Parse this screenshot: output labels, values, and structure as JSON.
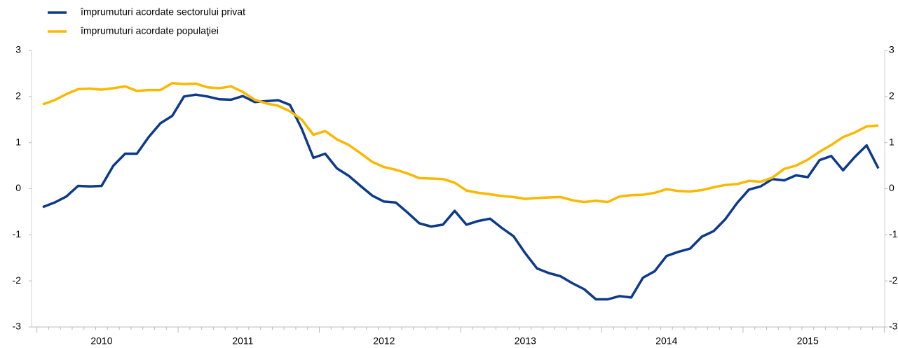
{
  "chart_data": {
    "type": "line",
    "categories": [
      null,
      null,
      null,
      null,
      null,
      "2010",
      null,
      null,
      null,
      null,
      null,
      null,
      null,
      null,
      null,
      null,
      null,
      "2011",
      null,
      null,
      null,
      null,
      null,
      null,
      null,
      null,
      null,
      null,
      null,
      "2012",
      null,
      null,
      null,
      null,
      null,
      null,
      null,
      null,
      null,
      null,
      null,
      "2013",
      null,
      null,
      null,
      null,
      null,
      null,
      null,
      null,
      null,
      null,
      null,
      "2014",
      null,
      null,
      null,
      null,
      null,
      null,
      null,
      null,
      null,
      null,
      null,
      "2015",
      null,
      null,
      null,
      null,
      null,
      null
    ],
    "series": [
      {
        "name": "împrumuturi acordate sectorului privat",
        "color": "#0d3a8c",
        "values": [
          -0.4,
          -0.3,
          -0.17,
          0.06,
          0.05,
          0.06,
          0.5,
          0.76,
          0.76,
          1.12,
          1.42,
          1.58,
          2.0,
          2.04,
          2.0,
          1.94,
          1.93,
          2.01,
          1.88,
          1.9,
          1.92,
          1.82,
          1.3,
          0.67,
          0.76,
          0.44,
          0.28,
          0.06,
          -0.15,
          -0.28,
          -0.3,
          -0.52,
          -0.75,
          -0.82,
          -0.78,
          -0.48,
          -0.78,
          -0.7,
          -0.65,
          -0.85,
          -1.03,
          -1.4,
          -1.73,
          -1.83,
          -1.9,
          -2.05,
          -2.18,
          -2.4,
          -2.4,
          -2.33,
          -2.36,
          -1.93,
          -1.79,
          -1.46,
          -1.37,
          -1.3,
          -1.04,
          -0.92,
          -0.66,
          -0.31,
          -0.02,
          0.05,
          0.21,
          0.18,
          0.29,
          0.25,
          0.62,
          0.71,
          0.4,
          0.69,
          0.94,
          0.44
        ]
      },
      {
        "name": "împrumuturi acordate populaţiei",
        "color": "#fbb800",
        "values": [
          1.83,
          1.92,
          2.05,
          2.16,
          2.17,
          2.15,
          2.18,
          2.22,
          2.12,
          2.14,
          2.14,
          2.29,
          2.27,
          2.28,
          2.2,
          2.18,
          2.22,
          2.1,
          1.93,
          1.85,
          1.8,
          1.68,
          1.5,
          1.17,
          1.25,
          1.07,
          0.95,
          0.77,
          0.58,
          0.47,
          0.41,
          0.33,
          0.23,
          0.22,
          0.21,
          0.13,
          -0.04,
          -0.09,
          -0.12,
          -0.16,
          -0.18,
          -0.22,
          -0.2,
          -0.19,
          -0.18,
          -0.25,
          -0.29,
          -0.26,
          -0.29,
          -0.17,
          -0.14,
          -0.13,
          -0.09,
          -0.01,
          -0.05,
          -0.06,
          -0.03,
          0.03,
          0.08,
          0.1,
          0.17,
          0.15,
          0.24,
          0.43,
          0.5,
          0.63,
          0.8,
          0.95,
          1.12,
          1.22,
          1.35,
          1.37
        ]
      }
    ],
    "ylim": [
      -3,
      3
    ],
    "yticks": [
      -3,
      -2,
      -1,
      0,
      1,
      2,
      3
    ],
    "legend": "top-left"
  }
}
